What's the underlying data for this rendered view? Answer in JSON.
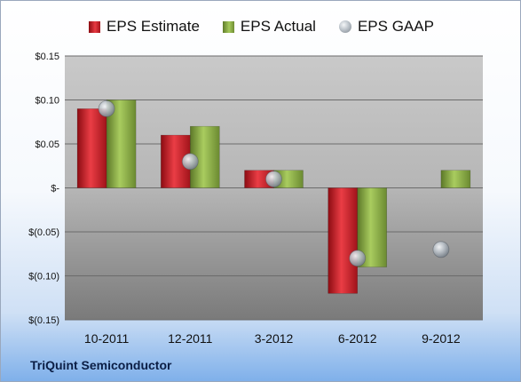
{
  "chart_data": {
    "type": "bar",
    "categories": [
      "10-2011",
      "12-2011",
      "3-2012",
      "6-2012",
      "9-2012"
    ],
    "series": [
      {
        "name": "EPS Estimate",
        "kind": "bar",
        "color": "#d6232b",
        "values": [
          0.09,
          0.06,
          0.02,
          -0.12,
          null
        ]
      },
      {
        "name": "EPS Actual",
        "kind": "bar",
        "color": "#8db446",
        "values": [
          0.1,
          0.07,
          0.02,
          -0.09,
          0.02
        ]
      },
      {
        "name": "EPS GAAP",
        "kind": "scatter",
        "color": "#a9b0b8",
        "values": [
          0.09,
          0.03,
          0.01,
          -0.08,
          -0.07
        ]
      }
    ],
    "ylim": [
      -0.15,
      0.15
    ],
    "yticks": [
      0.15,
      0.1,
      0.05,
      0,
      -0.05,
      -0.1,
      -0.15
    ],
    "ytick_labels": [
      "$0.15",
      "$0.10",
      "$0.05",
      "$-",
      "$(0.05)",
      "$(0.10)",
      "$(0.15)"
    ],
    "legend_position": "top",
    "grid": true
  },
  "legend": {
    "estimate": "EPS Estimate",
    "actual": "EPS Actual",
    "gaap": "EPS GAAP"
  },
  "company": "TriQuint Semiconductor"
}
